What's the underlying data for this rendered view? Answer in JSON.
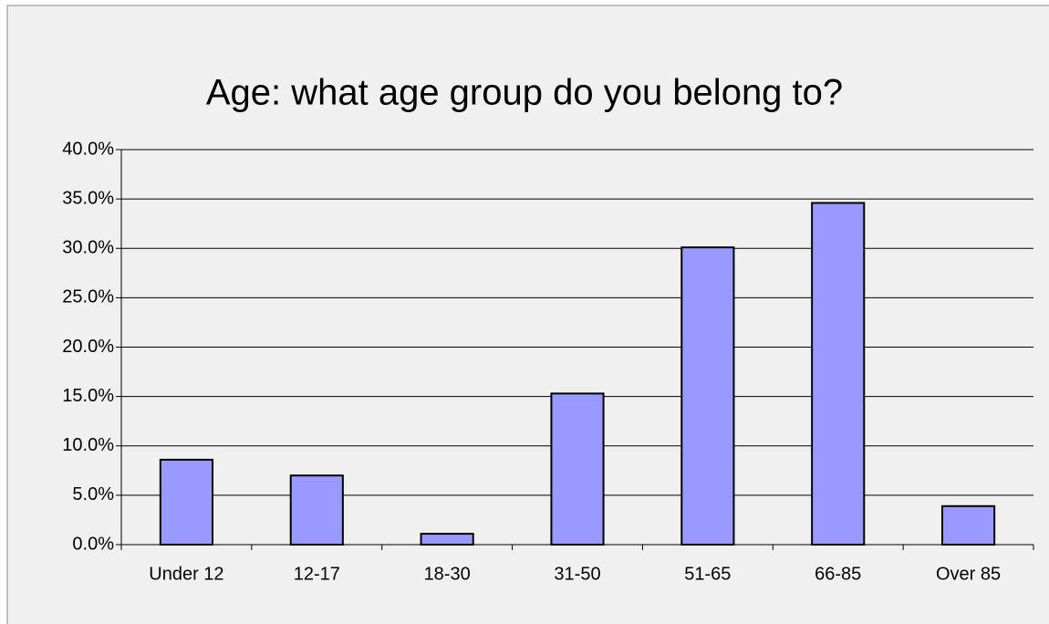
{
  "chart_data": {
    "type": "bar",
    "title": "Age: what age group do you belong to?",
    "categories": [
      "Under 12",
      "12-17",
      "18-30",
      "31-50",
      "51-65",
      "66-85",
      "Over 85"
    ],
    "values": [
      8.6,
      7.0,
      1.1,
      15.3,
      30.1,
      34.6,
      3.9
    ],
    "color": "#9999ff",
    "ylim": [
      0,
      40
    ],
    "yticks": [
      {
        "value": 0,
        "label": "0.0%"
      },
      {
        "value": 5,
        "label": "5.0%"
      },
      {
        "value": 10,
        "label": "10.0%"
      },
      {
        "value": 15,
        "label": "15.0%"
      },
      {
        "value": 20,
        "label": "20.0%"
      },
      {
        "value": 25,
        "label": "25.0%"
      },
      {
        "value": 30,
        "label": "30.0%"
      },
      {
        "value": 35,
        "label": "35.0%"
      },
      {
        "value": 40,
        "label": "40.0%"
      }
    ],
    "grid": true
  }
}
